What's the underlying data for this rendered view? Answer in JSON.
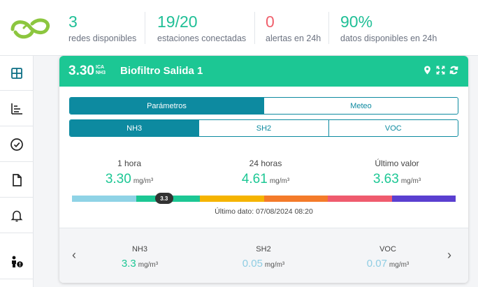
{
  "stats": [
    {
      "value": "3",
      "label": "redes disponibles",
      "color": "#1fbf96"
    },
    {
      "value": "19/20",
      "label": "estaciones conectadas",
      "color": "#1fbf96"
    },
    {
      "value": "0",
      "label": "alertas en 24h",
      "color": "#f0616d"
    },
    {
      "value": "90%",
      "label": "datos disponibles en 24h",
      "color": "#1fbf96"
    }
  ],
  "sidebar": {
    "items": [
      {
        "icon": "dashboard-grid-icon"
      },
      {
        "icon": "bar-list-icon"
      },
      {
        "icon": "check-circle-icon"
      },
      {
        "icon": "document-icon"
      },
      {
        "icon": "bell-icon"
      },
      {
        "icon": "person-alert-icon"
      }
    ]
  },
  "card": {
    "ica_value": "3.30",
    "ica_label_top": "ICA",
    "ica_label_bottom": "NH3",
    "station_name": "Biofiltro Salida 1",
    "header_icons": [
      "location-pin-icon",
      "expand-icon",
      "refresh-icon"
    ],
    "header_color": "#1cc794",
    "view_tabs": [
      {
        "label": "Parámetros",
        "active": true
      },
      {
        "label": "Meteo",
        "active": false
      }
    ],
    "pollutant_tabs": [
      {
        "label": "NH3",
        "active": true
      },
      {
        "label": "SH2",
        "active": false
      },
      {
        "label": "VOC",
        "active": false
      }
    ],
    "metrics": [
      {
        "label": "1 hora",
        "value": "3.30",
        "unit": "mg/m³"
      },
      {
        "label": "24 horas",
        "value": "4.61",
        "unit": "mg/m³"
      },
      {
        "label": "Último valor",
        "value": "3.63",
        "unit": "mg/m³"
      }
    ],
    "scale_colors": [
      "#8fd3e6",
      "#1cc794",
      "#f5b400",
      "#f47b2a",
      "#ef5b6e",
      "#5a3fd0"
    ],
    "marker_value": "3.3",
    "marker_fraction": 0.24,
    "last_data": "Último dato: 07/08/2024 08:20",
    "footer": {
      "prev_arrow": "‹",
      "next_arrow": "›",
      "pollutants": [
        {
          "name": "NH3",
          "value": "3.3",
          "unit": "mg/m³",
          "color": "#1cc794"
        },
        {
          "name": "SH2",
          "value": "0.05",
          "unit": "mg/m³",
          "color": "#8fcde3"
        },
        {
          "name": "VOC",
          "value": "0.07",
          "unit": "mg/m³",
          "color": "#8fcde3"
        }
      ]
    }
  }
}
